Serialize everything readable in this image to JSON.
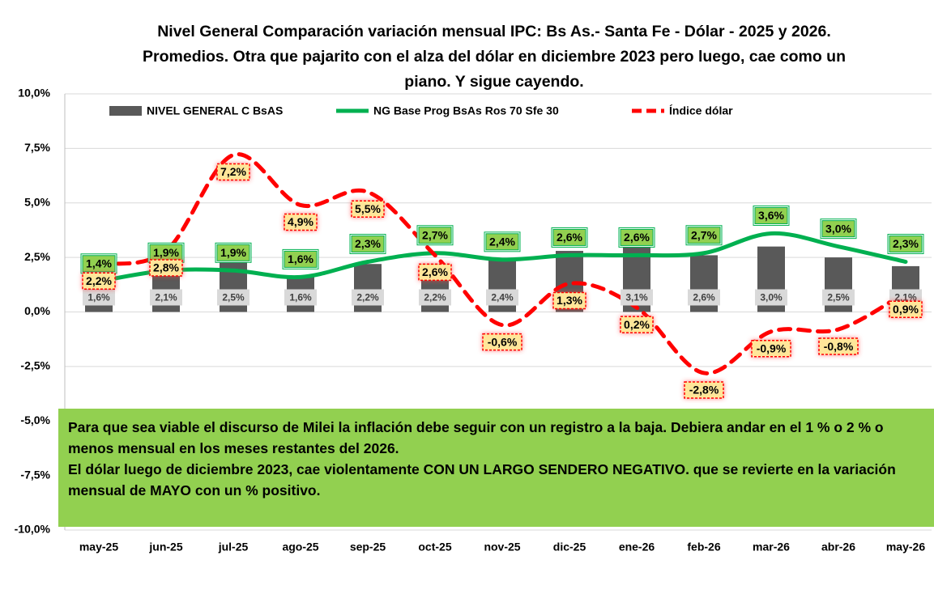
{
  "chart_data": {
    "type": "combo",
    "title": "Nivel General Comparación variación mensual IPC: Bs As.- Santa Fe - Dólar - 2025 y 2026. Promedios. Otra que pajarito con el alza del dólar en diciembre 2023 pero luego, cae como un piano. Y sigue cayendo.",
    "categories": [
      "may-25",
      "jun-25",
      "jul-25",
      "ago-25",
      "sep-25",
      "oct-25",
      "nov-25",
      "dic-25",
      "ene-26",
      "feb-26",
      "mar-26",
      "abr-26",
      "may-26"
    ],
    "series": [
      {
        "name": "NIVEL GENERAL C BsAS",
        "kind": "bar",
        "color": "#595959",
        "values": [
          1.6,
          2.1,
          2.5,
          1.6,
          2.2,
          2.2,
          2.4,
          2.8,
          3.1,
          2.6,
          3.0,
          2.5,
          2.1
        ],
        "value_labels": [
          "1,6%",
          "2,1%",
          "2,5%",
          "1,6%",
          "2,2%",
          "2,2%",
          "2,4%",
          null,
          "3,1%",
          "2,6%",
          "3,0%",
          "2,5%",
          "2,1%"
        ]
      },
      {
        "name": "NG Base Prog BsAs Ros 70 Sfe 30",
        "kind": "line",
        "color": "#00b050",
        "values": [
          1.4,
          1.9,
          1.9,
          1.6,
          2.3,
          2.7,
          2.4,
          2.6,
          2.6,
          2.7,
          3.6,
          3.0,
          2.3
        ],
        "value_labels": [
          "1,4%",
          "1,9%",
          "1,9%",
          "1,6%",
          "2,3%",
          "2,7%",
          "2,4%",
          "2,6%",
          "2,6%",
          "2,7%",
          "3,6%",
          "3,0%",
          "2,3%"
        ]
      },
      {
        "name": "Índice dólar",
        "kind": "dashed",
        "color": "#ff0000",
        "values": [
          2.2,
          2.8,
          7.2,
          4.9,
          5.5,
          2.6,
          -0.6,
          1.3,
          0.2,
          -2.8,
          -0.9,
          -0.8,
          0.9
        ],
        "value_labels": [
          "2,2%",
          "2,8%",
          "7,2%",
          "4,9%",
          "5,5%",
          "2,6%",
          "-0,6%",
          "1,3%",
          "0,2%",
          "-2,8%",
          "-0,9%",
          "-0,8%",
          "0,9%"
        ]
      }
    ],
    "ylim": [
      -10,
      10
    ],
    "yticks": [
      {
        "value": -10,
        "label": "-10,0%"
      },
      {
        "value": -7.5,
        "label": "-7,5%"
      },
      {
        "value": -5,
        "label": "-5,0%"
      },
      {
        "value": -2.5,
        "label": "-2,5%"
      },
      {
        "value": 0,
        "label": "0,0%"
      },
      {
        "value": 2.5,
        "label": "2,5%"
      },
      {
        "value": 5,
        "label": "5,0%"
      },
      {
        "value": 7.5,
        "label": "7,5%"
      },
      {
        "value": 10,
        "label": "10,0%"
      }
    ],
    "grid": true,
    "annotation": [
      "Para que sea viable el discurso de Milei la inflación debe seguir con un registro a la baja. Debiera andar en el 1 % o 2 % o menos mensual en los meses restantes del 2026.",
      "El dólar luego de diciembre 2023, cae violentamente CON UN LARGO SENDERO NEGATIVO. que se revierte en la variación mensual de MAYO con un % positivo."
    ]
  }
}
